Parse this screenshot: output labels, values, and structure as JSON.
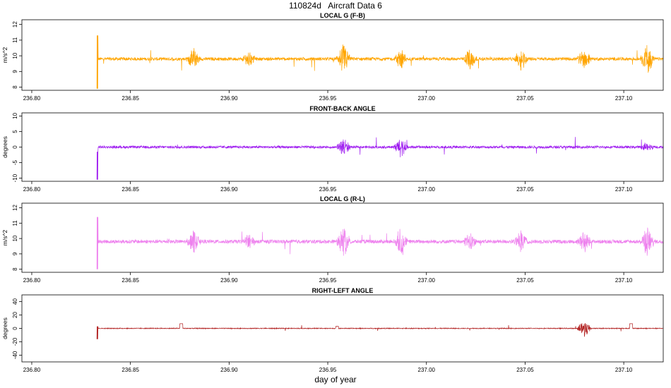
{
  "title": "110824d   Aircraft Data 6",
  "xlabel": "day of year",
  "chart_data": [
    {
      "type": "line",
      "title": "LOCAL G (F-B)",
      "ylabel": "m/s^2",
      "color": "#FFA500",
      "xlim": [
        236.795,
        237.12
      ],
      "ylim": [
        7.8,
        12.3
      ],
      "xticks": [
        236.8,
        236.85,
        236.9,
        236.95,
        237.0,
        237.05,
        237.1
      ],
      "xtick_labels": [
        "236.80",
        "236.85",
        "236.90",
        "236.95",
        "237.00",
        "237.05",
        "237.10"
      ],
      "yticks": [
        8,
        9,
        10,
        11,
        12
      ],
      "ytick_labels": [
        "8",
        "9",
        "10",
        "11",
        "12"
      ],
      "series": [
        {
          "x_start": 236.833,
          "x_end": 237.12,
          "baseline": 9.8,
          "noise": 0.1,
          "start_spike": [
            7.9,
            11.3
          ],
          "bursts": [
            {
              "x": 236.882,
              "amp": 0.7
            },
            {
              "x": 236.91,
              "amp": 0.5
            },
            {
              "x": 236.958,
              "amp": 1.0
            },
            {
              "x": 236.987,
              "amp": 0.6
            },
            {
              "x": 237.022,
              "amp": 0.7
            },
            {
              "x": 237.048,
              "amp": 0.7
            },
            {
              "x": 237.08,
              "amp": 0.7
            },
            {
              "x": 237.112,
              "amp": 1.0
            }
          ]
        }
      ]
    },
    {
      "type": "line",
      "title": "FRONT-BACK ANGLE",
      "ylabel": "degrees",
      "color": "#A020F0",
      "xlim": [
        236.795,
        237.12
      ],
      "ylim": [
        -11,
        11
      ],
      "xticks": [
        236.8,
        236.85,
        236.9,
        236.95,
        237.0,
        237.05,
        237.1
      ],
      "xtick_labels": [
        "236.80",
        "236.85",
        "236.90",
        "236.95",
        "237.00",
        "237.05",
        "237.10"
      ],
      "yticks": [
        -10,
        -5,
        0,
        5,
        10
      ],
      "ytick_labels": [
        "-10",
        "-5",
        "0",
        "5",
        "10"
      ],
      "series": [
        {
          "x_start": 236.833,
          "x_end": 237.12,
          "baseline": 0.0,
          "noise": 0.4,
          "start_spike": [
            -10.5,
            -1.5
          ],
          "bursts": [
            {
              "x": 236.958,
              "amp": 3.0
            },
            {
              "x": 236.987,
              "amp": 3.5
            },
            {
              "x": 237.112,
              "amp": 1.5
            }
          ]
        }
      ]
    },
    {
      "type": "line",
      "title": "LOCAL G (R-L)",
      "ylabel": "m/s^2",
      "color": "#EE82EE",
      "xlim": [
        236.795,
        237.12
      ],
      "ylim": [
        7.8,
        12.3
      ],
      "xticks": [
        236.8,
        236.85,
        236.9,
        236.95,
        237.0,
        237.05,
        237.1
      ],
      "xtick_labels": [
        "236.80",
        "236.85",
        "236.90",
        "236.95",
        "237.00",
        "237.05",
        "237.10"
      ],
      "yticks": [
        8,
        9,
        10,
        11,
        12
      ],
      "ytick_labels": [
        "8",
        "9",
        "10",
        "11",
        "12"
      ],
      "series": [
        {
          "x_start": 236.833,
          "x_end": 237.12,
          "baseline": 9.8,
          "noise": 0.12,
          "start_spike": [
            8.0,
            11.4
          ],
          "bursts": [
            {
              "x": 236.882,
              "amp": 0.7
            },
            {
              "x": 236.91,
              "amp": 0.5
            },
            {
              "x": 236.958,
              "amp": 1.0
            },
            {
              "x": 236.987,
              "amp": 0.9
            },
            {
              "x": 237.022,
              "amp": 0.6
            },
            {
              "x": 237.048,
              "amp": 0.8
            },
            {
              "x": 237.08,
              "amp": 0.8
            },
            {
              "x": 237.112,
              "amp": 1.0
            }
          ]
        }
      ]
    },
    {
      "type": "line",
      "title": "RIGHT-LEFT ANGLE",
      "ylabel": "degrees",
      "color": "#B22222",
      "xlim": [
        236.795,
        237.12
      ],
      "ylim": [
        -50,
        50
      ],
      "xticks": [
        236.8,
        236.85,
        236.9,
        236.95,
        237.0,
        237.05,
        237.1
      ],
      "xtick_labels": [
        "236.80",
        "236.85",
        "236.90",
        "236.95",
        "237.00",
        "237.05",
        "237.10"
      ],
      "yticks": [
        -40,
        -20,
        0,
        20,
        40
      ],
      "ytick_labels": [
        "-40",
        "-20",
        "0",
        "20",
        "40"
      ],
      "series": [
        {
          "x_start": 236.833,
          "x_end": 237.12,
          "baseline": 0.0,
          "noise": 0.6,
          "start_spike": [
            -16,
            3
          ],
          "bursts": [
            {
              "x": 237.08,
              "amp": 14
            }
          ],
          "steps": [
            {
              "x": 236.875,
              "value": 7
            },
            {
              "x": 236.954,
              "value": 3
            },
            {
              "x": 237.103,
              "value": 7
            }
          ]
        }
      ]
    }
  ]
}
